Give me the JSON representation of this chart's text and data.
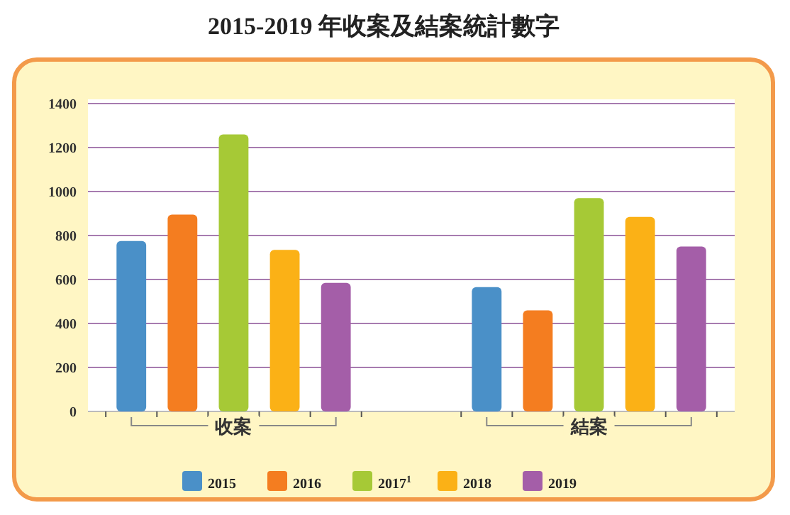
{
  "chart_data": {
    "type": "bar",
    "title": "2015-2019 年收案及結案統計數字",
    "categories": [
      "收案",
      "結案"
    ],
    "series": [
      {
        "name": "2015",
        "color": "#4a90c8",
        "values": [
          775,
          565
        ]
      },
      {
        "name": "2016",
        "color": "#f47d20",
        "values": [
          895,
          460
        ]
      },
      {
        "name": "2017$^{1}$",
        "color": "#a6c936",
        "values": [
          1260,
          970
        ]
      },
      {
        "name": "2018",
        "color": "#fbb116",
        "values": [
          735,
          885
        ]
      },
      {
        "name": "2019",
        "color": "#a45ea8",
        "values": [
          585,
          750
        ]
      }
    ],
    "ylim": [
      0,
      1400
    ],
    "yticks": [
      0,
      200,
      400,
      600,
      800,
      1000,
      1200,
      1400
    ],
    "grid": "y",
    "legend": "bottom"
  }
}
